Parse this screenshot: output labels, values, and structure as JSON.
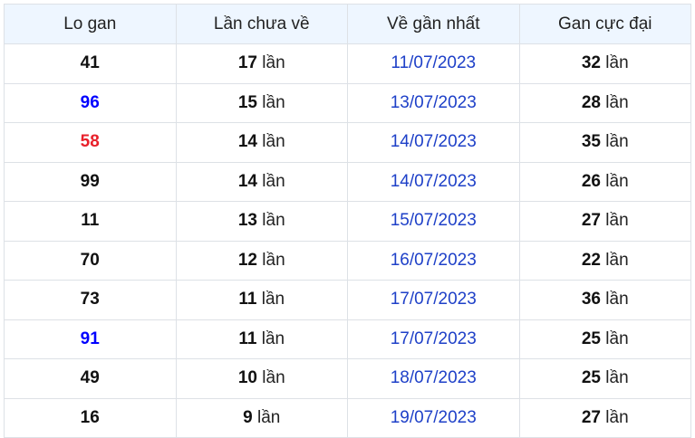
{
  "colors": {
    "blue": "#0000ff",
    "red": "#e8202a",
    "date": "#1e40c8",
    "header_bg": "#eef6ff"
  },
  "headers": [
    "Lo gan",
    "Lần chưa về",
    "Về gần nhất",
    "Gan cực đại"
  ],
  "unit": "lần",
  "rows": [
    {
      "lo": "41",
      "lo_color": "",
      "chua": "17",
      "date": "11/07/2023",
      "max": "32"
    },
    {
      "lo": "96",
      "lo_color": "#0000ff",
      "chua": "15",
      "date": "13/07/2023",
      "max": "28"
    },
    {
      "lo": "58",
      "lo_color": "#e8202a",
      "chua": "14",
      "date": "14/07/2023",
      "max": "35"
    },
    {
      "lo": "99",
      "lo_color": "",
      "chua": "14",
      "date": "14/07/2023",
      "max": "26"
    },
    {
      "lo": "11",
      "lo_color": "",
      "chua": "13",
      "date": "15/07/2023",
      "max": "27"
    },
    {
      "lo": "70",
      "lo_color": "",
      "chua": "12",
      "date": "16/07/2023",
      "max": "22"
    },
    {
      "lo": "73",
      "lo_color": "",
      "chua": "11",
      "date": "17/07/2023",
      "max": "36"
    },
    {
      "lo": "91",
      "lo_color": "#0000ff",
      "chua": "11",
      "date": "17/07/2023",
      "max": "25"
    },
    {
      "lo": "49",
      "lo_color": "",
      "chua": "10",
      "date": "18/07/2023",
      "max": "25"
    },
    {
      "lo": "16",
      "lo_color": "",
      "chua": "9",
      "date": "19/07/2023",
      "max": "27"
    }
  ]
}
